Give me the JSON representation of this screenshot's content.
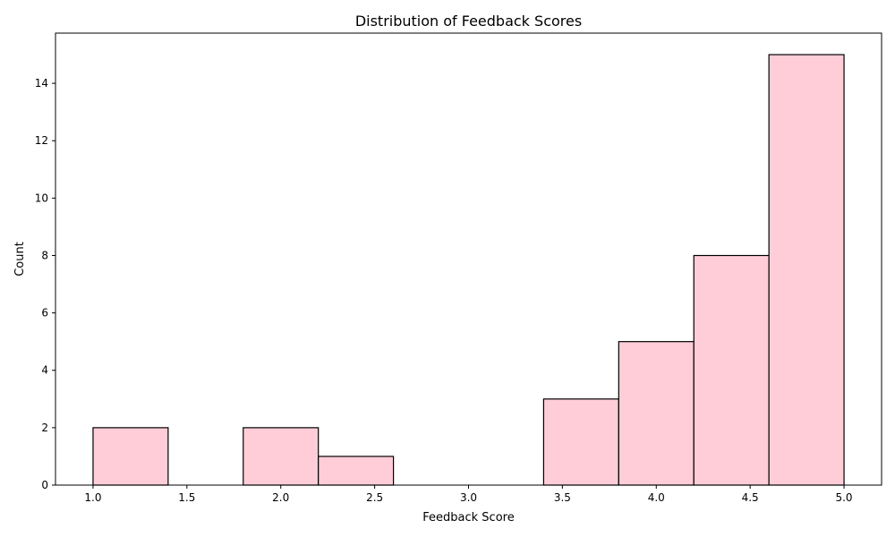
{
  "chart_data": {
    "type": "bar",
    "title": "Distribution of Feedback Scores",
    "xlabel": "Feedback Score",
    "ylabel": "Count",
    "bin_edges": [
      1.0,
      1.4,
      1.8,
      2.2,
      2.6,
      3.0,
      3.4,
      3.8,
      4.2,
      4.6,
      5.0
    ],
    "values": [
      2,
      0,
      2,
      1,
      0,
      0,
      3,
      5,
      8,
      15
    ],
    "xlim": [
      0.8,
      5.2
    ],
    "ylim": [
      0,
      15.75
    ],
    "xticks": [
      "1.0",
      "1.5",
      "2.0",
      "2.5",
      "3.0",
      "3.5",
      "4.0",
      "4.5",
      "5.0"
    ],
    "yticks": [
      "0",
      "2",
      "4",
      "6",
      "8",
      "10",
      "12",
      "14"
    ],
    "bar_color": "#ffcdd8",
    "edge_color": "#000000",
    "grid": false,
    "legend": false
  }
}
